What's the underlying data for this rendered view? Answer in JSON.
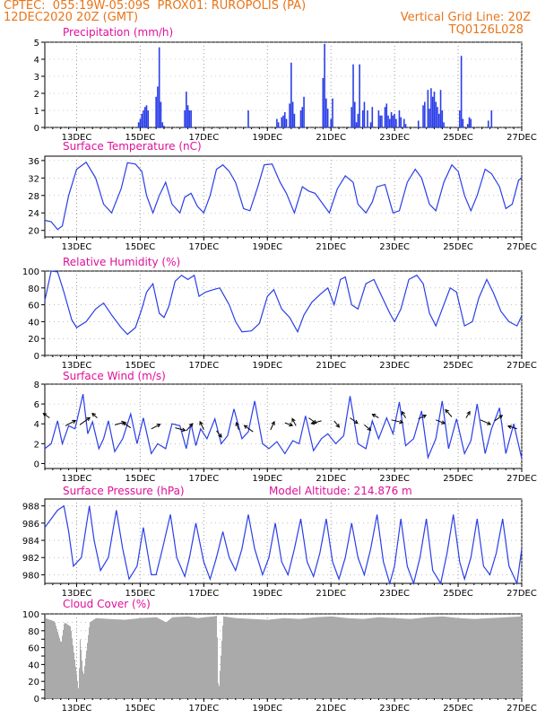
{
  "header": {
    "line1_left": "CPTEC:  055:19W-05:09S  PROX01: RUROPOLIS (PA)",
    "line2_left": "12DEC2020 20Z (GMT)",
    "line2_right": "Vertical Grid Line: 20Z",
    "line3_right": "TQ0126L028"
  },
  "colors": {
    "series": "#2a3ee8",
    "title": "#e0109a",
    "header": "#e8751a",
    "cloud": "#aaaaaa",
    "grid": "#999999"
  },
  "chart_data": [
    {
      "id": "precip",
      "type": "bar",
      "title": "Precipitation (mm/h)",
      "ylim": [
        0,
        5
      ],
      "yticks": [
        "0",
        "1",
        "2",
        "3",
        "4",
        "5"
      ],
      "xlim": [
        12.0,
        27.0
      ],
      "xticks": [
        "13DEC",
        "15DEC",
        "17DEC",
        "19DEC",
        "21DEC",
        "23DEC",
        "25DEC",
        "27DEC"
      ],
      "xtick_values": [
        13.0,
        15.0,
        17.0,
        19.0,
        21.0,
        23.0,
        25.0,
        27.0
      ],
      "bar_width_days": 0.045,
      "x": [
        14.95,
        15.0,
        15.05,
        15.1,
        15.15,
        15.2,
        15.25,
        15.5,
        15.55,
        15.6,
        15.65,
        15.7,
        15.75,
        16.4,
        16.45,
        16.5,
        16.55,
        16.6,
        18.4,
        19.3,
        19.35,
        19.45,
        19.5,
        19.55,
        19.6,
        19.7,
        19.75,
        19.8,
        19.85,
        20.05,
        20.1,
        20.15,
        20.75,
        20.8,
        20.85,
        20.9,
        21.0,
        21.05,
        21.65,
        21.7,
        21.75,
        21.8,
        21.85,
        21.9,
        22.0,
        22.05,
        22.15,
        22.25,
        22.3,
        22.5,
        22.55,
        22.6,
        22.7,
        22.75,
        22.8,
        22.85,
        22.9,
        22.95,
        23.0,
        23.05,
        23.15,
        23.2,
        23.3,
        23.35,
        23.75,
        23.9,
        23.95,
        24.05,
        24.1,
        24.15,
        24.2,
        24.25,
        24.3,
        24.35,
        24.4,
        24.45,
        24.5,
        24.55,
        25.05,
        25.1,
        25.15,
        25.3,
        25.35,
        25.4,
        25.95,
        26.05
      ],
      "values": [
        0.3,
        0.5,
        0.8,
        1.0,
        1.2,
        1.3,
        1.0,
        1.8,
        2.4,
        4.7,
        1.5,
        0.3,
        0.1,
        1.0,
        2.1,
        1.3,
        1.0,
        1.0,
        1.0,
        0.5,
        0.3,
        0.6,
        0.7,
        0.9,
        0.5,
        1.4,
        3.8,
        1.5,
        0.8,
        1.0,
        1.2,
        1.8,
        2.9,
        4.9,
        1.7,
        1.1,
        0.5,
        1.7,
        1.2,
        3.7,
        1.5,
        0.3,
        0.8,
        3.7,
        1.0,
        1.5,
        1.0,
        0.3,
        1.2,
        1.0,
        0.7,
        0.7,
        1.2,
        1.4,
        0.7,
        0.5,
        0.9,
        0.7,
        0.8,
        0.5,
        1.0,
        0.6,
        0.5,
        0.2,
        0.4,
        1.3,
        1.5,
        2.2,
        1.1,
        2.3,
        1.8,
        2.1,
        1.5,
        1.2,
        0.8,
        2.2,
        1.0,
        0.3,
        1.0,
        4.2,
        0.5,
        0.2,
        0.6,
        0.5,
        0.4,
        1.0
      ]
    },
    {
      "id": "temp",
      "type": "line",
      "title": "Surface Temperature (nC)",
      "ylim": [
        18.5,
        37
      ],
      "yticks": [
        "20",
        "24",
        "28",
        "32",
        "36"
      ],
      "ytick_values": [
        20,
        24,
        28,
        32,
        36
      ],
      "xlim": [
        12.0,
        27.0
      ],
      "xticks": [
        "13DEC",
        "15DEC",
        "17DEC",
        "19DEC",
        "21DEC",
        "23DEC",
        "25DEC",
        "27DEC"
      ],
      "xtick_values": [
        13.0,
        15.0,
        17.0,
        19.0,
        21.0,
        23.0,
        25.0,
        27.0
      ],
      "x": [
        12.0,
        12.2,
        12.4,
        12.55,
        12.75,
        13.0,
        13.3,
        13.6,
        13.85,
        14.1,
        14.4,
        14.6,
        14.85,
        15.05,
        15.2,
        15.4,
        15.6,
        15.8,
        16.0,
        16.25,
        16.4,
        16.6,
        16.8,
        17.0,
        17.2,
        17.4,
        17.6,
        17.8,
        18.0,
        18.25,
        18.45,
        18.7,
        18.9,
        19.15,
        19.4,
        19.6,
        19.85,
        20.1,
        20.3,
        20.5,
        20.75,
        20.95,
        21.2,
        21.45,
        21.7,
        21.85,
        22.1,
        22.3,
        22.45,
        22.7,
        22.95,
        23.15,
        23.4,
        23.65,
        23.85,
        24.1,
        24.3,
        24.55,
        24.8,
        25.0,
        25.2,
        25.4,
        25.6,
        25.85,
        26.05,
        26.3,
        26.5,
        26.7,
        26.9,
        27.0
      ],
      "y": [
        22.3,
        22.0,
        20.2,
        21.0,
        28.0,
        34.0,
        35.6,
        32.0,
        26.0,
        24.0,
        29.5,
        35.5,
        35.2,
        33.5,
        28.0,
        24.0,
        28.0,
        31.0,
        26.0,
        24.0,
        27.6,
        28.5,
        25.5,
        24.0,
        28.0,
        34.0,
        35.0,
        33.5,
        31.0,
        25.0,
        24.5,
        30.0,
        35.0,
        35.2,
        31.0,
        28.5,
        24.0,
        30.0,
        29.0,
        28.5,
        26.0,
        24.0,
        29.5,
        32.5,
        31.0,
        26.0,
        24.0,
        26.5,
        30.0,
        30.5,
        24.0,
        24.5,
        31.0,
        34.0,
        32.0,
        26.0,
        24.5,
        31.0,
        35.0,
        33.5,
        28.0,
        24.5,
        28.0,
        34.0,
        33.0,
        30.0,
        25.0,
        26.0,
        31.5,
        32.0
      ]
    },
    {
      "id": "rh",
      "type": "line",
      "title": "Relative Humidity (%)",
      "ylim": [
        0,
        100
      ],
      "yticks": [
        "0",
        "20",
        "40",
        "60",
        "80",
        "100"
      ],
      "ytick_values": [
        0,
        20,
        40,
        60,
        80,
        100
      ],
      "xlim": [
        12.0,
        27.0
      ],
      "xticks": [
        "13DEC",
        "15DEC",
        "17DEC",
        "19DEC",
        "21DEC",
        "23DEC",
        "25DEC",
        "27DEC"
      ],
      "xtick_values": [
        13.0,
        15.0,
        17.0,
        19.0,
        21.0,
        23.0,
        25.0,
        27.0
      ],
      "x": [
        12.0,
        12.2,
        12.4,
        12.6,
        12.85,
        13.0,
        13.3,
        13.6,
        13.85,
        14.1,
        14.4,
        14.6,
        14.85,
        15.05,
        15.2,
        15.4,
        15.6,
        15.75,
        15.9,
        16.1,
        16.3,
        16.5,
        16.7,
        16.85,
        17.05,
        17.3,
        17.5,
        17.8,
        18.0,
        18.2,
        18.5,
        18.75,
        19.0,
        19.2,
        19.45,
        19.7,
        19.95,
        20.15,
        20.4,
        20.65,
        20.9,
        21.1,
        21.3,
        21.45,
        21.65,
        21.85,
        22.1,
        22.35,
        22.6,
        22.85,
        23.0,
        23.2,
        23.45,
        23.7,
        23.9,
        24.1,
        24.3,
        24.5,
        24.75,
        24.95,
        25.2,
        25.45,
        25.65,
        25.9,
        26.1,
        26.35,
        26.6,
        26.85,
        27.0
      ],
      "y": [
        65,
        100,
        99,
        75,
        42,
        33,
        40,
        55,
        62,
        48,
        33,
        25,
        33,
        55,
        75,
        85,
        50,
        45,
        58,
        88,
        95,
        90,
        95,
        70,
        75,
        78,
        80,
        60,
        40,
        28,
        29,
        38,
        70,
        78,
        55,
        45,
        28,
        48,
        63,
        72,
        80,
        60,
        90,
        93,
        60,
        55,
        85,
        90,
        70,
        50,
        40,
        55,
        90,
        95,
        85,
        50,
        35,
        55,
        80,
        75,
        35,
        40,
        68,
        90,
        75,
        52,
        40,
        35,
        47
      ]
    },
    {
      "id": "wind",
      "type": "line",
      "title": "Surface Wind (m/s)",
      "ylim": [
        -0.5,
        8
      ],
      "yticks": [
        "0",
        "2",
        "4",
        "6",
        "8"
      ],
      "ytick_values": [
        0,
        2,
        4,
        6,
        8
      ],
      "xlim": [
        12.0,
        27.0
      ],
      "xticks": [
        "13DEC",
        "15DEC",
        "17DEC",
        "19DEC",
        "21DEC",
        "23DEC",
        "25DEC",
        "27DEC"
      ],
      "xtick_values": [
        13.0,
        15.0,
        17.0,
        19.0,
        21.0,
        23.0,
        25.0,
        27.0
      ],
      "x": [
        12.0,
        12.2,
        12.4,
        12.55,
        12.75,
        12.95,
        13.2,
        13.35,
        13.5,
        13.7,
        13.85,
        14.0,
        14.2,
        14.45,
        14.7,
        14.9,
        15.1,
        15.35,
        15.55,
        15.8,
        16.0,
        16.25,
        16.45,
        16.6,
        16.75,
        16.9,
        17.1,
        17.35,
        17.55,
        17.75,
        17.95,
        18.2,
        18.4,
        18.6,
        18.85,
        19.05,
        19.3,
        19.55,
        19.8,
        20.0,
        20.2,
        20.45,
        20.7,
        20.9,
        21.15,
        21.4,
        21.6,
        21.85,
        22.1,
        22.3,
        22.5,
        22.75,
        22.95,
        23.15,
        23.35,
        23.6,
        23.85,
        24.05,
        24.3,
        24.5,
        24.7,
        24.95,
        25.2,
        25.4,
        25.6,
        25.85,
        26.05,
        26.3,
        26.5,
        26.75,
        27.0
      ],
      "y": [
        1.5,
        2.0,
        4.3,
        2.0,
        3.8,
        3.5,
        7.0,
        3.0,
        4.2,
        1.5,
        2.5,
        4.3,
        1.2,
        2.5,
        5.0,
        2.0,
        4.6,
        1.0,
        2.0,
        1.5,
        4.0,
        3.8,
        1.5,
        4.0,
        1.8,
        3.5,
        2.5,
        4.5,
        2.0,
        2.8,
        5.5,
        2.5,
        3.2,
        6.3,
        2.0,
        1.5,
        2.2,
        1.0,
        2.3,
        2.0,
        4.8,
        1.3,
        2.5,
        3.0,
        2.0,
        2.8,
        6.8,
        2.0,
        1.5,
        4.3,
        2.5,
        4.6,
        3.0,
        6.2,
        1.8,
        2.5,
        5.3,
        0.6,
        2.5,
        6.3,
        1.5,
        4.5,
        1.0,
        2.3,
        6.0,
        1.0,
        3.5,
        5.6,
        1.0,
        4.0,
        0.5
      ],
      "arrows": {
        "x": [
          12.15,
          12.65,
          13.1,
          13.65,
          14.2,
          14.7,
          15.35,
          16.1,
          16.45,
          17.0,
          17.4,
          18.1,
          18.55,
          19.1,
          19.55,
          19.9,
          20.3,
          20.7,
          21.1,
          21.6,
          22.05,
          22.5,
          22.9,
          23.35,
          23.75,
          24.3,
          24.8,
          25.25,
          25.7,
          26.15,
          26.85
        ],
        "y": [
          4.6,
          3.8,
          3.9,
          4.6,
          3.9,
          3.6,
          3.5,
          3.6,
          3.3,
          3.4,
          3.3,
          3.4,
          3.2,
          3.4,
          4.1,
          3.8,
          4.6,
          4.3,
          4.3,
          4.6,
          3.9,
          4.6,
          4.4,
          4.6,
          4.5,
          4.4,
          4.7,
          4.6,
          4.4,
          4.3,
          3.5
        ],
        "u": [
          -0.5,
          0.8,
          0.8,
          -0.4,
          0.8,
          -0.6,
          0.7,
          0.8,
          0.5,
          -0.3,
          0.4,
          -0.2,
          -0.7,
          0.3,
          0.6,
          -0.3,
          0.6,
          -0.8,
          0.4,
          0.6,
          0.5,
          -0.5,
          0.9,
          -0.3,
          0.6,
          0.7,
          -0.5,
          0.3,
          0.8,
          0.6,
          -0.7
        ],
        "v": [
          0.5,
          0.6,
          0.8,
          0.5,
          0.3,
          0.6,
          0.5,
          -0.3,
          0.8,
          0.9,
          -0.7,
          0.8,
          0.7,
          0.9,
          -0.3,
          0.8,
          -0.6,
          -0.3,
          -0.7,
          -0.6,
          -0.6,
          0.4,
          -0.3,
          0.7,
          0.4,
          -0.4,
          0.8,
          0.7,
          -0.5,
          0.6,
          0.3
        ]
      }
    },
    {
      "id": "pressure",
      "type": "line",
      "title": "Surface Pressure (hPa)",
      "annotation": "Model Altitude: 214.876  m",
      "ylim": [
        979,
        988.8
      ],
      "yticks": [
        "980",
        "982",
        "984",
        "986",
        "988"
      ],
      "ytick_values": [
        980,
        982,
        984,
        986,
        988
      ],
      "xlim": [
        12.0,
        27.0
      ],
      "xticks": [
        "13DEC",
        "15DEC",
        "17DEC",
        "19DEC",
        "21DEC",
        "23DEC",
        "25DEC",
        "27DEC"
      ],
      "xtick_values": [
        13.0,
        15.0,
        17.0,
        19.0,
        21.0,
        23.0,
        25.0,
        27.0
      ],
      "x": [
        12.0,
        12.2,
        12.4,
        12.6,
        12.75,
        12.9,
        13.15,
        13.4,
        13.55,
        13.75,
        14.0,
        14.25,
        14.45,
        14.65,
        14.9,
        15.1,
        15.35,
        15.5,
        15.7,
        15.95,
        16.15,
        16.4,
        16.55,
        16.75,
        17.0,
        17.2,
        17.4,
        17.6,
        17.8,
        18.0,
        18.2,
        18.4,
        18.6,
        18.85,
        19.05,
        19.25,
        19.45,
        19.65,
        19.85,
        20.05,
        20.25,
        20.45,
        20.65,
        20.85,
        21.05,
        21.25,
        21.45,
        21.65,
        21.85,
        22.05,
        22.25,
        22.45,
        22.65,
        22.85,
        23.0,
        23.2,
        23.4,
        23.6,
        23.8,
        24.0,
        24.2,
        24.45,
        24.65,
        24.85,
        25.05,
        25.2,
        25.4,
        25.6,
        25.8,
        26.0,
        26.2,
        26.4,
        26.6,
        26.85,
        27.0
      ],
      "y": [
        985.5,
        986.5,
        987.5,
        988.0,
        985.0,
        981.0,
        982.0,
        988.0,
        984.0,
        980.5,
        982.0,
        987.5,
        983.0,
        979.5,
        981.0,
        985.5,
        980.0,
        980.0,
        983.0,
        987.0,
        982.0,
        979.8,
        982.0,
        986.0,
        981.5,
        979.5,
        982.0,
        985.0,
        982.0,
        980.5,
        983.0,
        987.0,
        983.0,
        980.0,
        982.0,
        986.0,
        981.5,
        980.0,
        983.0,
        986.5,
        981.5,
        979.8,
        982.5,
        986.5,
        981.5,
        979.5,
        982.0,
        986.0,
        982.0,
        980.0,
        983.0,
        987.0,
        981.5,
        979.0,
        981.0,
        986.5,
        981.0,
        979.0,
        982.0,
        986.5,
        980.5,
        979.0,
        982.5,
        987.0,
        981.5,
        979.5,
        982.0,
        986.5,
        981.0,
        980.0,
        982.5,
        986.5,
        981.0,
        979.0,
        983.0
      ]
    },
    {
      "id": "cloud",
      "type": "area",
      "title": "Cloud Cover (%)",
      "ylim": [
        0,
        100
      ],
      "yticks": [
        "0",
        "10",
        "20",
        "30",
        "40",
        "50",
        "60",
        "70",
        "80",
        "90",
        "100"
      ],
      "ytick_values": [
        0,
        10,
        20,
        30,
        40,
        50,
        60,
        70,
        80,
        90,
        100
      ],
      "ytick_labels_shown": [
        "0",
        "20",
        "40",
        "60",
        "80",
        "100"
      ],
      "xlim": [
        12.0,
        27.0
      ],
      "xticks": [
        "13DEC",
        "15DEC",
        "17DEC",
        "19DEC",
        "21DEC",
        "23DEC",
        "25DEC",
        "27DEC"
      ],
      "xtick_values": [
        13.0,
        15.0,
        17.0,
        19.0,
        21.0,
        23.0,
        25.0,
        27.0
      ],
      "x": [
        12.0,
        12.3,
        12.5,
        12.6,
        12.8,
        12.95,
        13.05,
        13.1,
        13.2,
        13.4,
        13.6,
        14.0,
        14.5,
        15.0,
        15.5,
        15.8,
        16.0,
        16.5,
        16.8,
        17.0,
        17.3,
        17.4,
        17.45,
        17.6,
        18.0,
        18.5,
        19.0,
        19.5,
        20.0,
        20.5,
        21.0,
        21.5,
        22.0,
        22.5,
        23.0,
        23.5,
        24.0,
        24.5,
        25.0,
        25.5,
        26.0,
        26.5,
        27.0
      ],
      "y": [
        95,
        91,
        65,
        90,
        85,
        40,
        10,
        70,
        25,
        90,
        95,
        94,
        93,
        95,
        96,
        90,
        96,
        97,
        95,
        96,
        97,
        98,
        2,
        97,
        95,
        94,
        93,
        95,
        94,
        96,
        97,
        95,
        94,
        96,
        95,
        94,
        96,
        97,
        95,
        94,
        95,
        96,
        97
      ]
    }
  ]
}
